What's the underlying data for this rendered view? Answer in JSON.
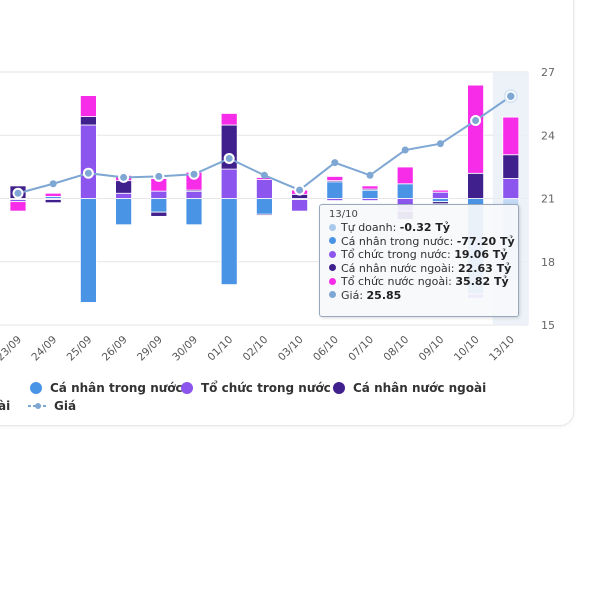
{
  "chart_data": {
    "type": "bar",
    "stacked": true,
    "title": "",
    "xlabel": "",
    "ylabel": "",
    "categories": [
      "23/09",
      "24/09",
      "25/09",
      "26/09",
      "29/09",
      "30/09",
      "01/10",
      "02/10",
      "03/10",
      "06/10",
      "07/10",
      "08/10",
      "09/10",
      "10/10",
      "13/10"
    ],
    "series": [
      {
        "name": "Tự doanh",
        "color": "#a8c8ec",
        "values": [
          -1,
          0,
          0,
          0,
          0,
          0,
          0,
          0,
          -1,
          0,
          0,
          0,
          0,
          0,
          -0.32
        ]
      },
      {
        "name": "Cá nhân trong nước",
        "color": "#4a94e6",
        "values": [
          0,
          2,
          -99,
          -25,
          -13,
          -25,
          -82,
          -15,
          0,
          16,
          8,
          14,
          -3,
          -91,
          -77.2
        ]
      },
      {
        "name": "Tổ chức trong nước",
        "color": "#8b55ee",
        "values": [
          -2,
          -1,
          70,
          5,
          7,
          7,
          28,
          18,
          -11,
          -2,
          -2,
          -12,
          6,
          -4,
          19.06
        ]
      },
      {
        "name": "Cá nhân nước ngoài",
        "color": "#40208c",
        "values": [
          12,
          -3,
          8,
          12,
          -4,
          1,
          42,
          -1,
          4,
          1,
          1,
          -8,
          -2,
          24,
          22.63
        ]
      },
      {
        "name": "Tổ chức nước ngoài",
        "color": "#f62ce8",
        "values": [
          -9,
          3,
          20,
          5,
          12,
          17,
          11,
          2,
          4,
          4,
          3,
          16,
          2,
          84,
          35.82
        ]
      }
    ],
    "line_series": {
      "name": "Giá",
      "color": "#7ea7d3",
      "values": [
        21.25,
        21.7,
        22.2,
        22.0,
        22.05,
        22.15,
        22.9,
        22.1,
        21.4,
        22.7,
        22.1,
        23.3,
        23.6,
        24.7,
        25.85
      ]
    },
    "y_right": {
      "ticks": [
        15,
        18,
        21,
        24,
        27
      ],
      "range": [
        15,
        27
      ]
    },
    "bar_zero_at_price": 21,
    "grid": true,
    "highlighted_category": "13/10",
    "legend": {
      "placement": "bottom",
      "items": [
        {
          "label": "Cá nhân trong nước",
          "color": "#4a94e6",
          "shape": "circle"
        },
        {
          "label": "Tổ chức trong nước",
          "color": "#8b55ee",
          "shape": "circle"
        },
        {
          "label": "Cá nhân nước ngoài",
          "color": "#40208c",
          "shape": "circle"
        },
        {
          "label": "Giá",
          "color": "#7ea7d3",
          "shape": "dash-dot"
        }
      ],
      "partial_label": "ài"
    }
  },
  "tooltip": {
    "date": "13/10",
    "rows": [
      {
        "label": "Tự doanh: ",
        "value": "-0.32 Tỷ",
        "color": "#a8c8ec"
      },
      {
        "label": "Cá nhân trong nước: ",
        "value": "-77.20 Tỷ",
        "color": "#4a94e6"
      },
      {
        "label": "Tổ chức trong nước: ",
        "value": "19.06 Tỷ",
        "color": "#8b55ee"
      },
      {
        "label": "Cá nhân nước ngoài: ",
        "value": "22.63 Tỷ",
        "color": "#40208c"
      },
      {
        "label": "Tổ chức nước ngoài: ",
        "value": "35.82 Tỷ",
        "color": "#f62ce8"
      },
      {
        "label": "Giá: ",
        "value": "25.85",
        "color": "#7ea7d3"
      }
    ]
  }
}
